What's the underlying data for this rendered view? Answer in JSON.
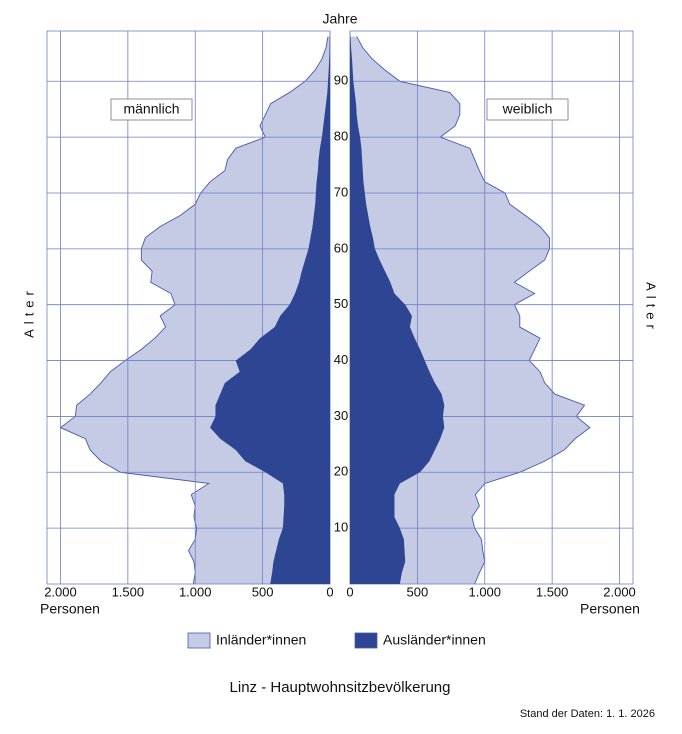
{
  "chart_data": {
    "type": "pyramid",
    "title": "Linz - Hauptwohnsitzbevölkerung",
    "note": "Stand der Daten: 1. 1. 2026",
    "y_label": "Alter",
    "y_unit": "Jahre",
    "x_label": "Personen",
    "left_label": "männlich",
    "right_label": "weiblich",
    "ages": [
      0,
      2,
      4,
      6,
      8,
      10,
      12,
      14,
      16,
      18,
      20,
      22,
      24,
      26,
      28,
      30,
      32,
      34,
      36,
      38,
      40,
      42,
      44,
      46,
      48,
      50,
      52,
      54,
      56,
      58,
      60,
      62,
      64,
      66,
      68,
      70,
      72,
      74,
      76,
      78,
      80,
      82,
      84,
      86,
      88,
      90,
      92,
      94,
      96,
      98
    ],
    "ylim": [
      0,
      99
    ],
    "yticks": [
      10,
      20,
      30,
      40,
      50,
      60,
      70,
      80,
      90
    ],
    "xlim": [
      0,
      2100
    ],
    "xticks": [
      0,
      500,
      {
        "value": 1000,
        "label": "1.000"
      },
      {
        "value": 1500,
        "label": "1.500"
      },
      {
        "value": 2000,
        "label": "2.000"
      }
    ],
    "grid": true,
    "series": [
      {
        "name": "Inländer*innen",
        "color": "#c5cae5",
        "left": [
          571,
          570,
          590,
          650,
          620,
          640,
          665,
          660,
          690,
          550,
          1075,
          1070,
          1080,
          1000,
          1110,
          1040,
          1030,
          965,
          920,
          960,
          820,
          810,
          780,
          810,
          890,
          850,
          920,
          1100,
          1110,
          1215,
          1240,
          1225,
          1130,
          990,
          890,
          855,
          790,
          690,
          675,
          625,
          420,
          470,
          440,
          410,
          280,
          170,
          100,
          54,
          26,
          13
        ],
        "right": [
          555,
          575,
          590,
          580,
          575,
          555,
          575,
          630,
          600,
          630,
          740,
          855,
          960,
          1000,
          1080,
          990,
          1040,
          840,
          815,
          820,
          775,
          850,
          930,
          815,
          800,
          810,
          1040,
          920,
          1070,
          1225,
          1295,
          1310,
          1260,
          1165,
          1065,
          1040,
          900,
          865,
          835,
          805,
          595,
          720,
          765,
          770,
          705,
          345,
          240,
          150,
          87,
          46
        ]
      },
      {
        "name": "Ausländer*innen",
        "color": "#2e4594",
        "left": [
          444,
          430,
          420,
          400,
          380,
          350,
          345,
          340,
          340,
          350,
          480,
          630,
          700,
          815,
          890,
          850,
          850,
          815,
          780,
          670,
          700,
          590,
          520,
          410,
          370,
          300,
          260,
          230,
          210,
          185,
          160,
          145,
          130,
          120,
          110,
          105,
          100,
          90,
          85,
          75,
          60,
          50,
          40,
          30,
          20,
          15,
          10,
          6,
          4,
          2
        ],
        "right": [
          370,
          385,
          410,
          405,
          400,
          370,
          330,
          330,
          330,
          370,
          520,
          590,
          630,
          670,
          700,
          690,
          700,
          680,
          630,
          590,
          555,
          520,
          480,
          445,
          460,
          410,
          330,
          300,
          260,
          220,
          185,
          170,
          150,
          135,
          120,
          110,
          100,
          95,
          90,
          85,
          75,
          60,
          50,
          45,
          35,
          25,
          20,
          15,
          8,
          4
        ]
      }
    ]
  }
}
